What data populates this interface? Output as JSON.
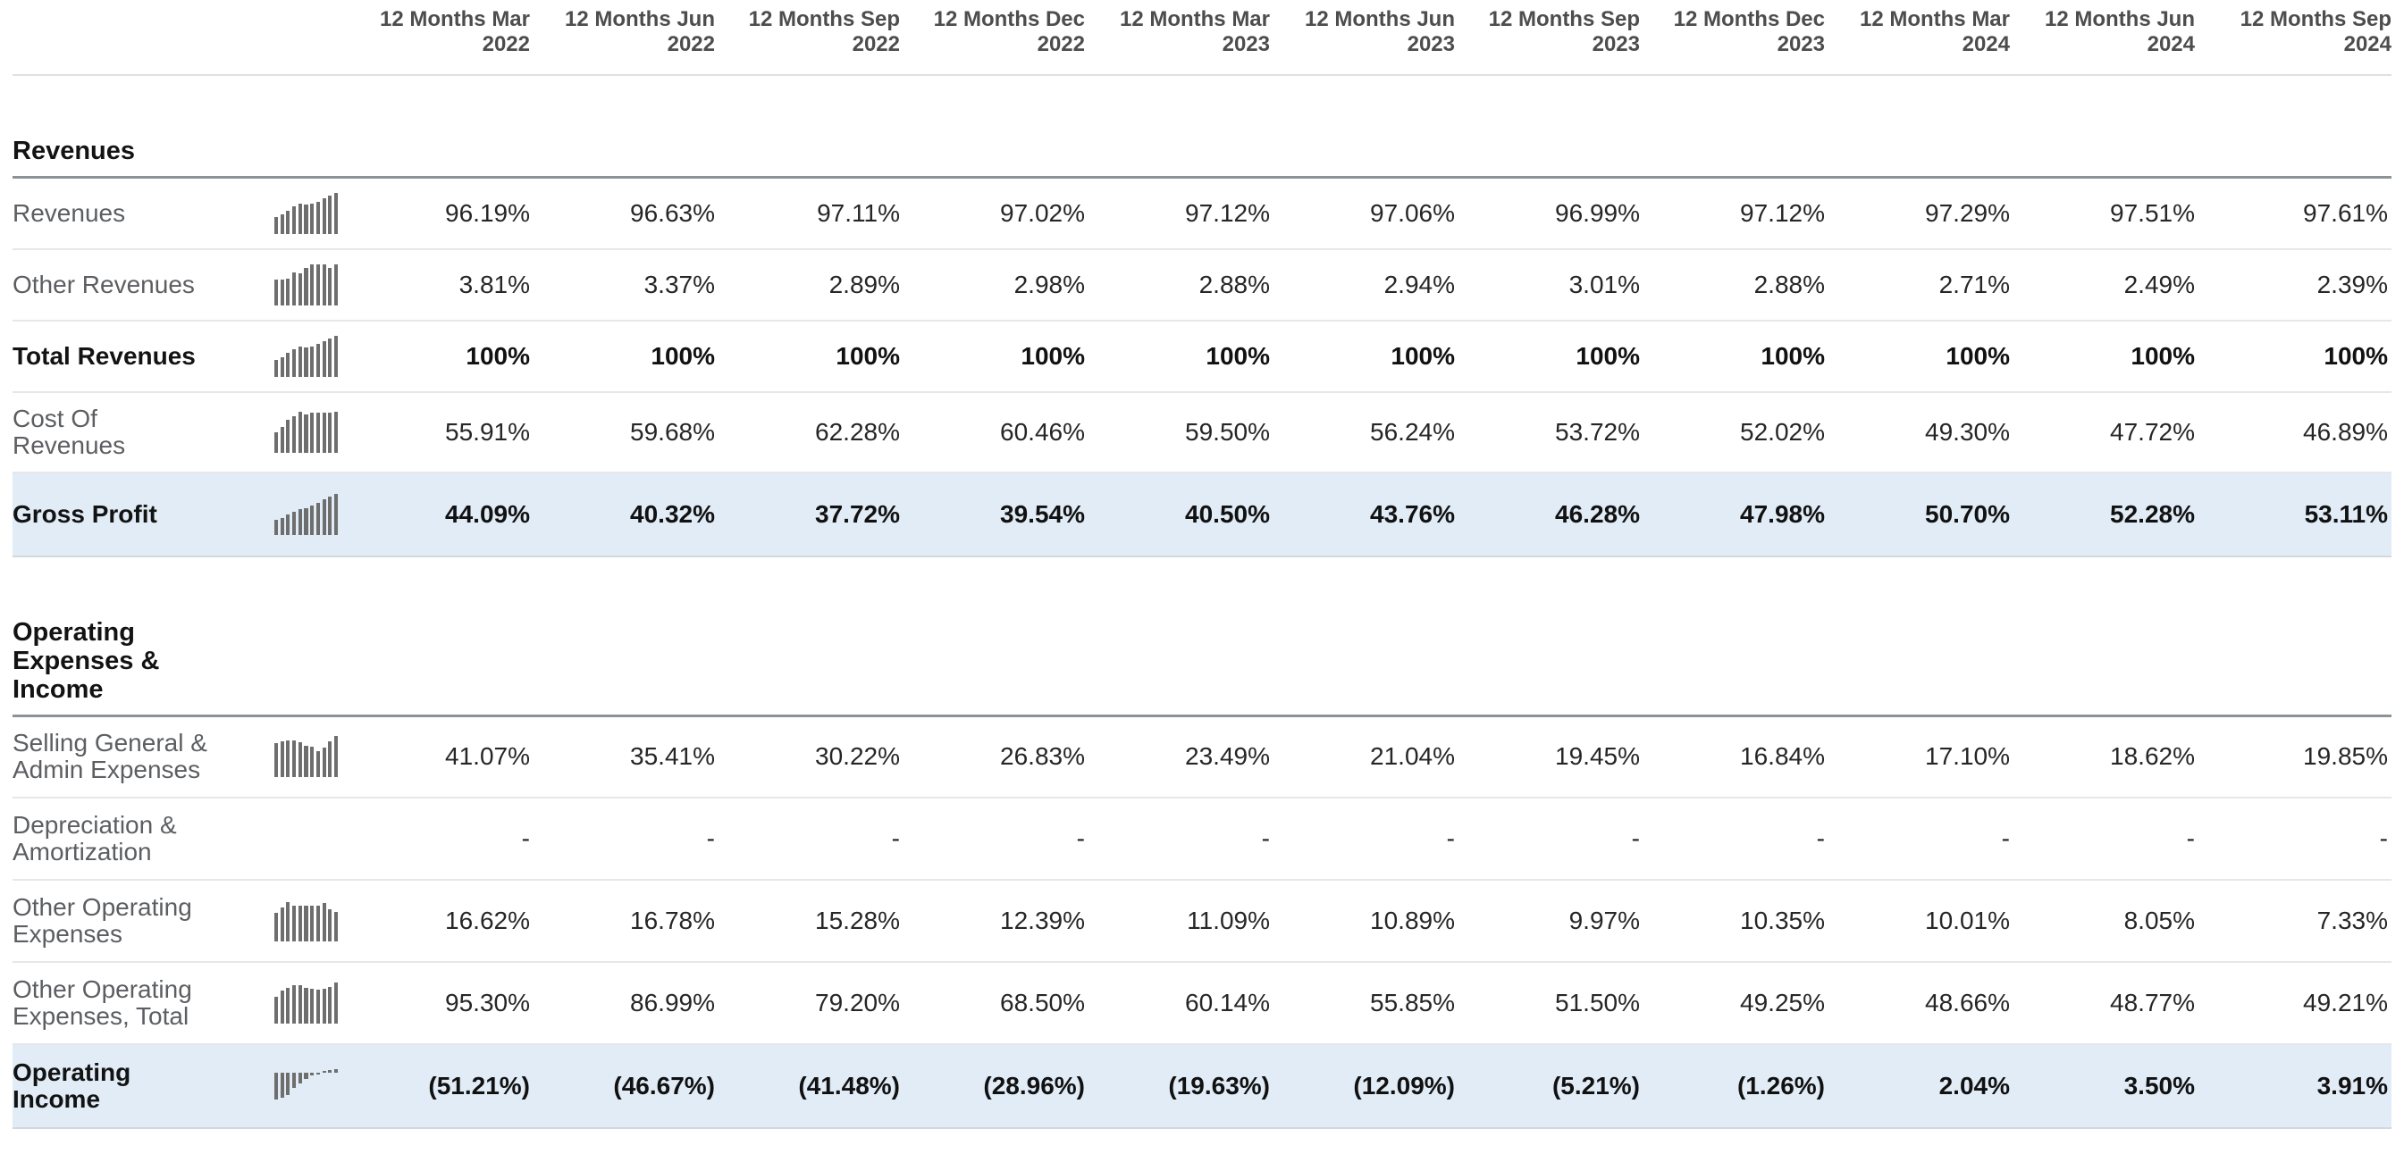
{
  "colors": {
    "highlight_row_bg": "#e1ecf7",
    "sparkline_bar": "#6e6e6e",
    "section_rule": "#8b9396",
    "row_separator": "#e7e7e7",
    "header_text": "#4d4d4d",
    "label_text": "#5c5e61",
    "value_text": "#262626",
    "bold_text": "#131313"
  },
  "table": {
    "columns": [
      {
        "line1": "12 Months Mar",
        "line2": "2022"
      },
      {
        "line1": "12 Months Jun",
        "line2": "2022"
      },
      {
        "line1": "12 Months Sep",
        "line2": "2022"
      },
      {
        "line1": "12 Months Dec",
        "line2": "2022"
      },
      {
        "line1": "12 Months Mar",
        "line2": "2023"
      },
      {
        "line1": "12 Months Jun",
        "line2": "2023"
      },
      {
        "line1": "12 Months Sep",
        "line2": "2023"
      },
      {
        "line1": "12 Months Dec",
        "line2": "2023"
      },
      {
        "line1": "12 Months Mar",
        "line2": "2024"
      },
      {
        "line1": "12 Months Jun",
        "line2": "2024"
      },
      {
        "line1": "12 Months Sep",
        "line2": "2024"
      }
    ],
    "sections": [
      {
        "title": "Revenues",
        "rows": [
          {
            "label": "Revenues",
            "bold": false,
            "highlight": false,
            "h": 80,
            "spark": {
              "kind": "bottom",
              "heights": [
                0.41,
                0.47,
                0.57,
                0.68,
                0.74,
                0.72,
                0.74,
                0.79,
                0.87,
                0.93,
                1.0
              ]
            },
            "values": [
              "96.19%",
              "96.63%",
              "97.11%",
              "97.02%",
              "97.12%",
              "97.06%",
              "96.99%",
              "97.12%",
              "97.29%",
              "97.51%",
              "97.61%"
            ]
          },
          {
            "label": "Other Revenues",
            "bold": false,
            "highlight": false,
            "h": 80,
            "spark": {
              "kind": "bottom",
              "heights": [
                0.62,
                0.64,
                0.66,
                0.8,
                0.78,
                0.92,
                1.0,
                1.0,
                1.0,
                0.92,
                1.0
              ]
            },
            "values": [
              "3.81%",
              "3.37%",
              "2.89%",
              "2.98%",
              "2.88%",
              "2.94%",
              "3.01%",
              "2.88%",
              "2.71%",
              "2.49%",
              "2.39%"
            ]
          },
          {
            "label": "Total Revenues",
            "bold": true,
            "highlight": false,
            "h": 80,
            "spark": {
              "kind": "bottom",
              "heights": [
                0.42,
                0.48,
                0.58,
                0.68,
                0.73,
                0.71,
                0.74,
                0.8,
                0.87,
                0.93,
                1.0
              ]
            },
            "values": [
              "100%",
              "100%",
              "100%",
              "100%",
              "100%",
              "100%",
              "100%",
              "100%",
              "100%",
              "100%",
              "100%"
            ]
          },
          {
            "label": "Cost Of Revenues",
            "bold": false,
            "highlight": false,
            "h": 90,
            "spark": {
              "kind": "bottom",
              "heights": [
                0.5,
                0.63,
                0.8,
                0.9,
                1.0,
                0.93,
                0.98,
                0.98,
                0.97,
                0.97,
                1.0
              ]
            },
            "values": [
              "55.91%",
              "59.68%",
              "62.28%",
              "60.46%",
              "59.50%",
              "56.24%",
              "53.72%",
              "52.02%",
              "49.30%",
              "47.72%",
              "46.89%"
            ]
          },
          {
            "label": "Gross Profit",
            "bold": true,
            "highlight": true,
            "h": 94,
            "spark": {
              "kind": "bottom",
              "heights": [
                0.38,
                0.42,
                0.5,
                0.57,
                0.62,
                0.66,
                0.72,
                0.79,
                0.86,
                0.93,
                1.0
              ]
            },
            "values": [
              "44.09%",
              "40.32%",
              "37.72%",
              "39.54%",
              "40.50%",
              "43.76%",
              "46.28%",
              "47.98%",
              "50.70%",
              "52.28%",
              "53.11%"
            ]
          }
        ]
      },
      {
        "title": "Operating Expenses & Income",
        "rows": [
          {
            "label": "Selling General & Admin Expenses",
            "bold": false,
            "highlight": false,
            "h": 92,
            "spark": {
              "kind": "bottom",
              "heights": [
                0.82,
                0.88,
                0.9,
                0.9,
                0.85,
                0.76,
                0.73,
                0.64,
                0.71,
                0.87,
                1.0
              ]
            },
            "values": [
              "41.07%",
              "35.41%",
              "30.22%",
              "26.83%",
              "23.49%",
              "21.04%",
              "19.45%",
              "16.84%",
              "17.10%",
              "18.62%",
              "19.85%"
            ]
          },
          {
            "label": "Depreciation & Amortization",
            "bold": false,
            "highlight": false,
            "h": 92,
            "spark": null,
            "values": [
              "-",
              "-",
              "-",
              "-",
              "-",
              "-",
              "-",
              "-",
              "-",
              "-",
              "-"
            ]
          },
          {
            "label": "Other Operating Expenses",
            "bold": false,
            "highlight": false,
            "h": 92,
            "spark": {
              "kind": "bottom",
              "heights": [
                0.7,
                0.83,
                0.95,
                0.88,
                0.88,
                0.86,
                0.86,
                0.86,
                0.93,
                0.78,
                0.72
              ]
            },
            "values": [
              "16.62%",
              "16.78%",
              "15.28%",
              "12.39%",
              "11.09%",
              "10.89%",
              "9.97%",
              "10.35%",
              "10.01%",
              "8.05%",
              "7.33%"
            ]
          },
          {
            "label": "Other Operating Expenses, Total",
            "bold": false,
            "highlight": false,
            "h": 92,
            "spark": {
              "kind": "bottom",
              "heights": [
                0.65,
                0.8,
                0.88,
                0.93,
                0.93,
                0.86,
                0.84,
                0.82,
                0.84,
                0.9,
                1.0
              ]
            },
            "values": [
              "95.30%",
              "86.99%",
              "79.20%",
              "68.50%",
              "60.14%",
              "55.85%",
              "51.50%",
              "49.25%",
              "48.66%",
              "48.77%",
              "49.21%"
            ]
          },
          {
            "label": "Operating Income",
            "bold": true,
            "highlight": true,
            "h": 94,
            "spark": {
              "kind": "baseline",
              "px": [
                -30,
                -27.5,
                -24.5,
                -17,
                -11.5,
                -7,
                -3,
                -2,
                2.5,
                3,
                4.5
              ]
            },
            "values": [
              "(51.21%)",
              "(46.67%)",
              "(41.48%)",
              "(28.96%)",
              "(19.63%)",
              "(12.09%)",
              "(5.21%)",
              "(1.26%)",
              "2.04%",
              "3.50%",
              "3.91%"
            ]
          }
        ]
      }
    ]
  }
}
